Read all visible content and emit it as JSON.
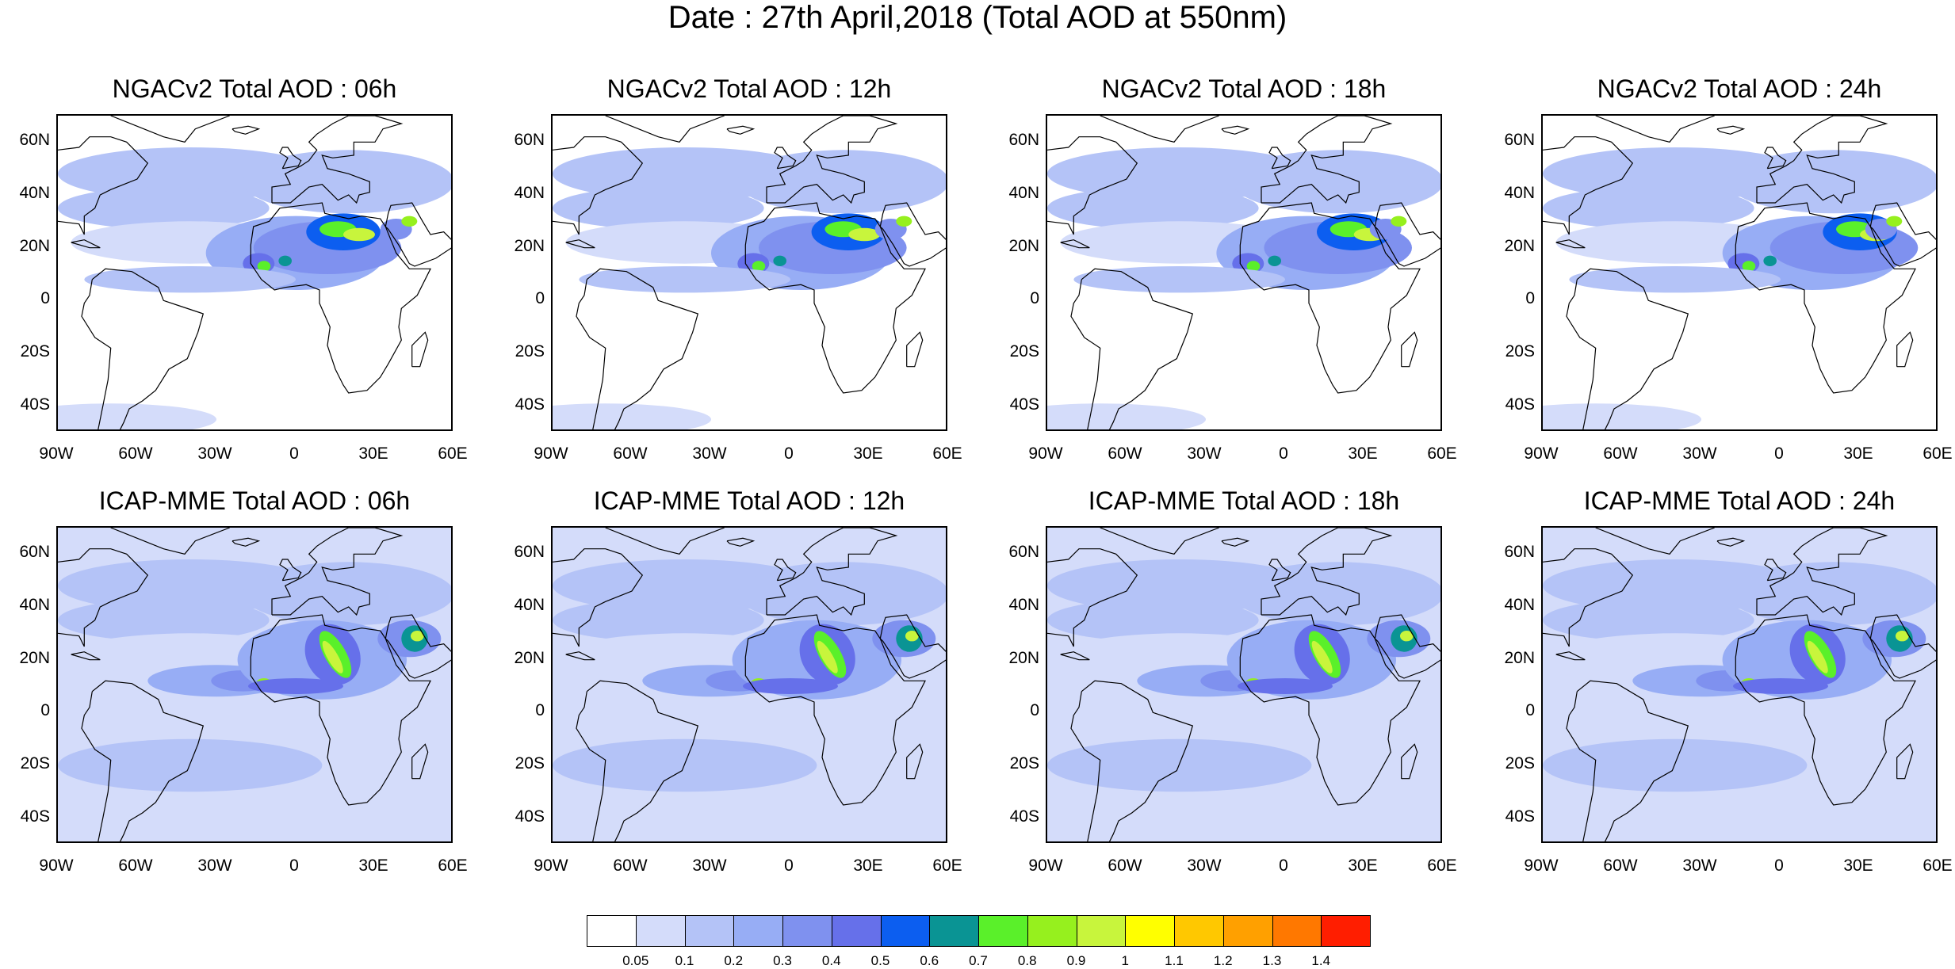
{
  "title": "Date : 27th April,2018 (Total AOD at 550nm)",
  "lat_ticks": [
    "60N",
    "40N",
    "20N",
    "0",
    "20S",
    "40S"
  ],
  "lon_ticks": [
    "90W",
    "60W",
    "30W",
    "0",
    "30E",
    "60E"
  ],
  "panels": [
    {
      "title": "NGACv2 Total AOD : 06h",
      "model": "NGACv2",
      "hour": "06h"
    },
    {
      "title": "NGACv2 Total AOD : 12h",
      "model": "NGACv2",
      "hour": "12h"
    },
    {
      "title": "NGACv2 Total AOD : 18h",
      "model": "NGACv2",
      "hour": "18h"
    },
    {
      "title": "NGACv2 Total AOD : 24h",
      "model": "NGACv2",
      "hour": "24h"
    },
    {
      "title": "ICAP-MME Total AOD : 06h",
      "model": "ICAP-MME",
      "hour": "06h"
    },
    {
      "title": "ICAP-MME Total AOD : 12h",
      "model": "ICAP-MME",
      "hour": "12h"
    },
    {
      "title": "ICAP-MME Total AOD : 18h",
      "model": "ICAP-MME",
      "hour": "18h"
    },
    {
      "title": "ICAP-MME Total AOD : 24h",
      "model": "ICAP-MME",
      "hour": "24h"
    }
  ],
  "colorbar": {
    "labels": [
      "0.05",
      "0.1",
      "0.2",
      "0.3",
      "0.4",
      "0.5",
      "0.6",
      "0.7",
      "0.8",
      "0.9",
      "1",
      "1.1",
      "1.2",
      "1.3",
      "1.4"
    ],
    "colors": [
      "#ffffff",
      "#d4dcfa",
      "#b4c3f7",
      "#97adf5",
      "#7f91ef",
      "#6670ea",
      "#0c5ef0",
      "#0a9494",
      "#5af02a",
      "#96f01e",
      "#c8f53c",
      "#ffff00",
      "#ffc800",
      "#ffa000",
      "#ff7800",
      "#ff1e00"
    ]
  },
  "map": {
    "extent": {
      "lon": [
        -90,
        60
      ],
      "lat": [
        -50,
        70
      ]
    },
    "land_color": "#000000"
  }
}
